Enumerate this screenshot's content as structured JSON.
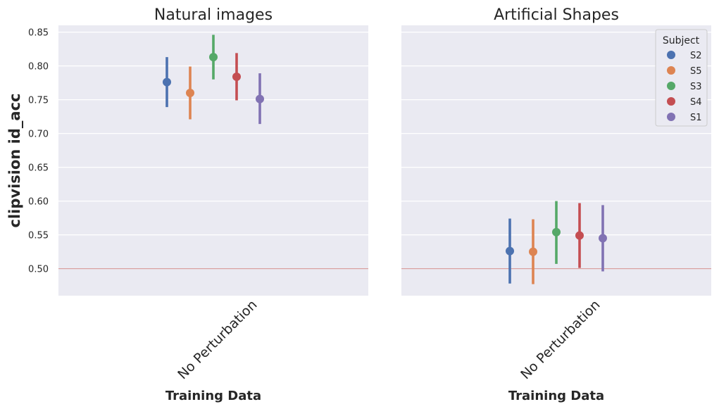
{
  "figure": {
    "ylabel": "clipvision id_acc",
    "xlabel": "Training Data"
  },
  "legend": {
    "title": "Subject",
    "entries": [
      {
        "name": "S2",
        "color": "#4c72b0"
      },
      {
        "name": "S5",
        "color": "#dd8452"
      },
      {
        "name": "S3",
        "color": "#55a868"
      },
      {
        "name": "S4",
        "color": "#c44e52"
      },
      {
        "name": "S1",
        "color": "#8172b3"
      }
    ]
  },
  "chart_data": [
    {
      "type": "scatter",
      "subtype": "pointplot-with-error-bars",
      "title": "Natural images",
      "xlabel": "Training Data",
      "ylabel": "clipvision id_acc",
      "categories": [
        "No Perturbation"
      ],
      "ylim": [
        0.46,
        0.86
      ],
      "yticks": [
        "0.50",
        "0.55",
        "0.60",
        "0.65",
        "0.70",
        "0.75",
        "0.80",
        "0.85"
      ],
      "reference_line": 0.5,
      "reference_line_color": "#d9a0a0",
      "grid": true,
      "series": [
        {
          "name": "S2",
          "values": [
            0.776
          ],
          "ci_low": [
            0.739
          ],
          "ci_high": [
            0.813
          ],
          "color": "#4c72b0"
        },
        {
          "name": "S5",
          "values": [
            0.76
          ],
          "ci_low": [
            0.721
          ],
          "ci_high": [
            0.799
          ],
          "color": "#dd8452"
        },
        {
          "name": "S3",
          "values": [
            0.813
          ],
          "ci_low": [
            0.78
          ],
          "ci_high": [
            0.846
          ],
          "color": "#55a868"
        },
        {
          "name": "S4",
          "values": [
            0.784
          ],
          "ci_low": [
            0.749
          ],
          "ci_high": [
            0.819
          ],
          "color": "#c44e52"
        },
        {
          "name": "S1",
          "values": [
            0.751
          ],
          "ci_low": [
            0.714
          ],
          "ci_high": [
            0.789
          ],
          "color": "#8172b3"
        }
      ]
    },
    {
      "type": "scatter",
      "subtype": "pointplot-with-error-bars",
      "title": "Artificial Shapes",
      "xlabel": "Training Data",
      "categories": [
        "No Perturbation"
      ],
      "ylim": [
        0.46,
        0.86
      ],
      "reference_line": 0.5,
      "reference_line_color": "#d9a0a0",
      "grid": true,
      "legend_position": "top-right",
      "series": [
        {
          "name": "S2",
          "values": [
            0.526
          ],
          "ci_low": [
            0.478
          ],
          "ci_high": [
            0.574
          ],
          "color": "#4c72b0"
        },
        {
          "name": "S5",
          "values": [
            0.525
          ],
          "ci_low": [
            0.477
          ],
          "ci_high": [
            0.573
          ],
          "color": "#dd8452"
        },
        {
          "name": "S3",
          "values": [
            0.554
          ],
          "ci_low": [
            0.507
          ],
          "ci_high": [
            0.6
          ],
          "color": "#55a868"
        },
        {
          "name": "S4",
          "values": [
            0.549
          ],
          "ci_low": [
            0.501
          ],
          "ci_high": [
            0.597
          ],
          "color": "#c44e52"
        },
        {
          "name": "S1",
          "values": [
            0.545
          ],
          "ci_low": [
            0.496
          ],
          "ci_high": [
            0.594
          ],
          "color": "#8172b3"
        }
      ]
    }
  ]
}
